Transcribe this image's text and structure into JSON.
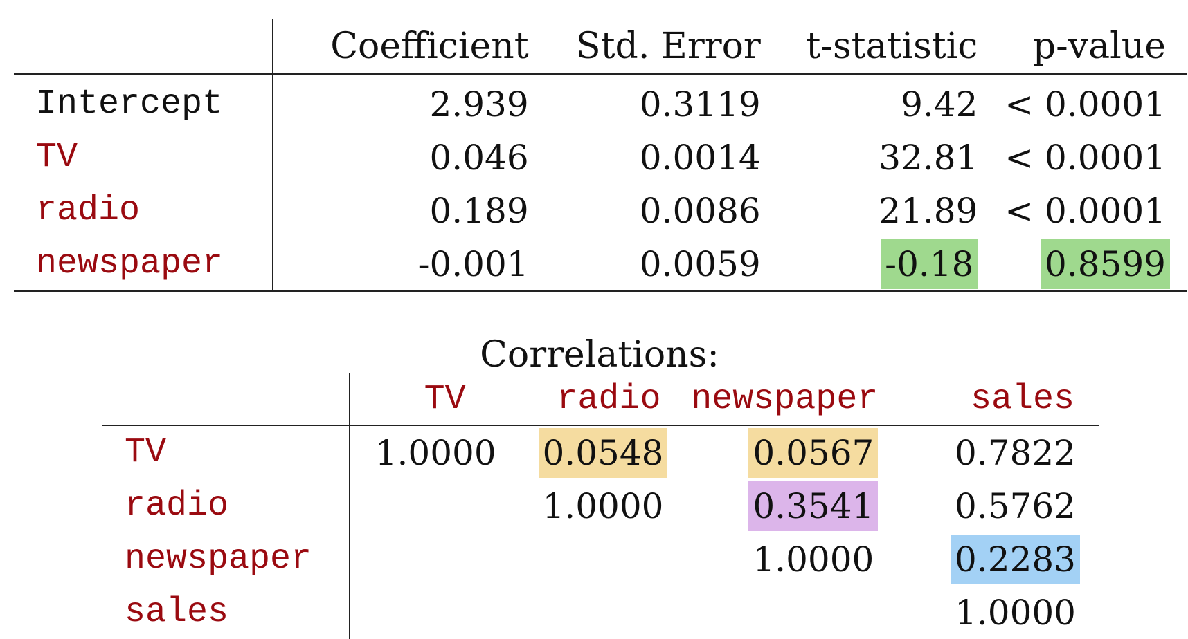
{
  "regression_table": {
    "headers": [
      "",
      "Coefficient",
      "Std. Error",
      "t-statistic",
      "p-value"
    ],
    "rows": [
      {
        "term": "Intercept",
        "term_color": "#111111",
        "coefficient": "2.939",
        "std_error": "0.3119",
        "t_statistic": "9.42",
        "p_value": "< 0.0001"
      },
      {
        "term": "TV",
        "term_color": "#9a0a10",
        "coefficient": "0.046",
        "std_error": "0.0014",
        "t_statistic": "32.81",
        "p_value": "< 0.0001"
      },
      {
        "term": "radio",
        "term_color": "#9a0a10",
        "coefficient": "0.189",
        "std_error": "0.0086",
        "t_statistic": "21.89",
        "p_value": "< 0.0001"
      },
      {
        "term": "newspaper",
        "term_color": "#9a0a10",
        "coefficient": "-0.001",
        "std_error": "0.0059",
        "t_statistic": "-0.18",
        "p_value": "0.8599"
      }
    ],
    "highlight_color": "#9fd98e"
  },
  "correlations": {
    "title": "Correlations:",
    "columns": [
      "TV",
      "radio",
      "newspaper",
      "sales"
    ],
    "rows": [
      {
        "label": "TV",
        "values": [
          "1.0000",
          "0.0548",
          "0.0567",
          "0.7822"
        ]
      },
      {
        "label": "radio",
        "values": [
          "",
          "1.0000",
          "0.3541",
          "0.5762"
        ]
      },
      {
        "label": "newspaper",
        "values": [
          "",
          "",
          "1.0000",
          "0.2283"
        ]
      },
      {
        "label": "sales",
        "values": [
          "",
          "",
          "",
          "1.0000"
        ]
      }
    ],
    "highlight_colors": {
      "yellow": "#f5dca0",
      "purple": "#dcb5ea",
      "blue": "#a3d1f5"
    }
  }
}
